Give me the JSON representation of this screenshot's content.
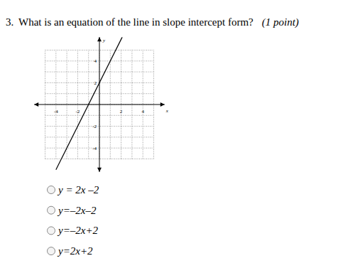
{
  "question": {
    "number": "3.",
    "text": "What is an equation of the line in slope intercept form?",
    "points": "(1 point)"
  },
  "chart_data": {
    "type": "line",
    "x_label": "x",
    "y_label": "y",
    "x": [
      -4,
      2.1
    ],
    "values": [
      -6,
      6.2
    ],
    "color": "#000000",
    "xlim": [
      -6,
      6
    ],
    "ylim": [
      -6.2,
      6.2
    ],
    "xticks": [
      -4,
      -2,
      2,
      4
    ],
    "yticks": [
      -4,
      -2,
      2,
      4
    ],
    "grid": true
  },
  "choices": [
    "y = 2x –2",
    "y=–2x–2",
    "y=–2x+2",
    "y=2x+2"
  ]
}
